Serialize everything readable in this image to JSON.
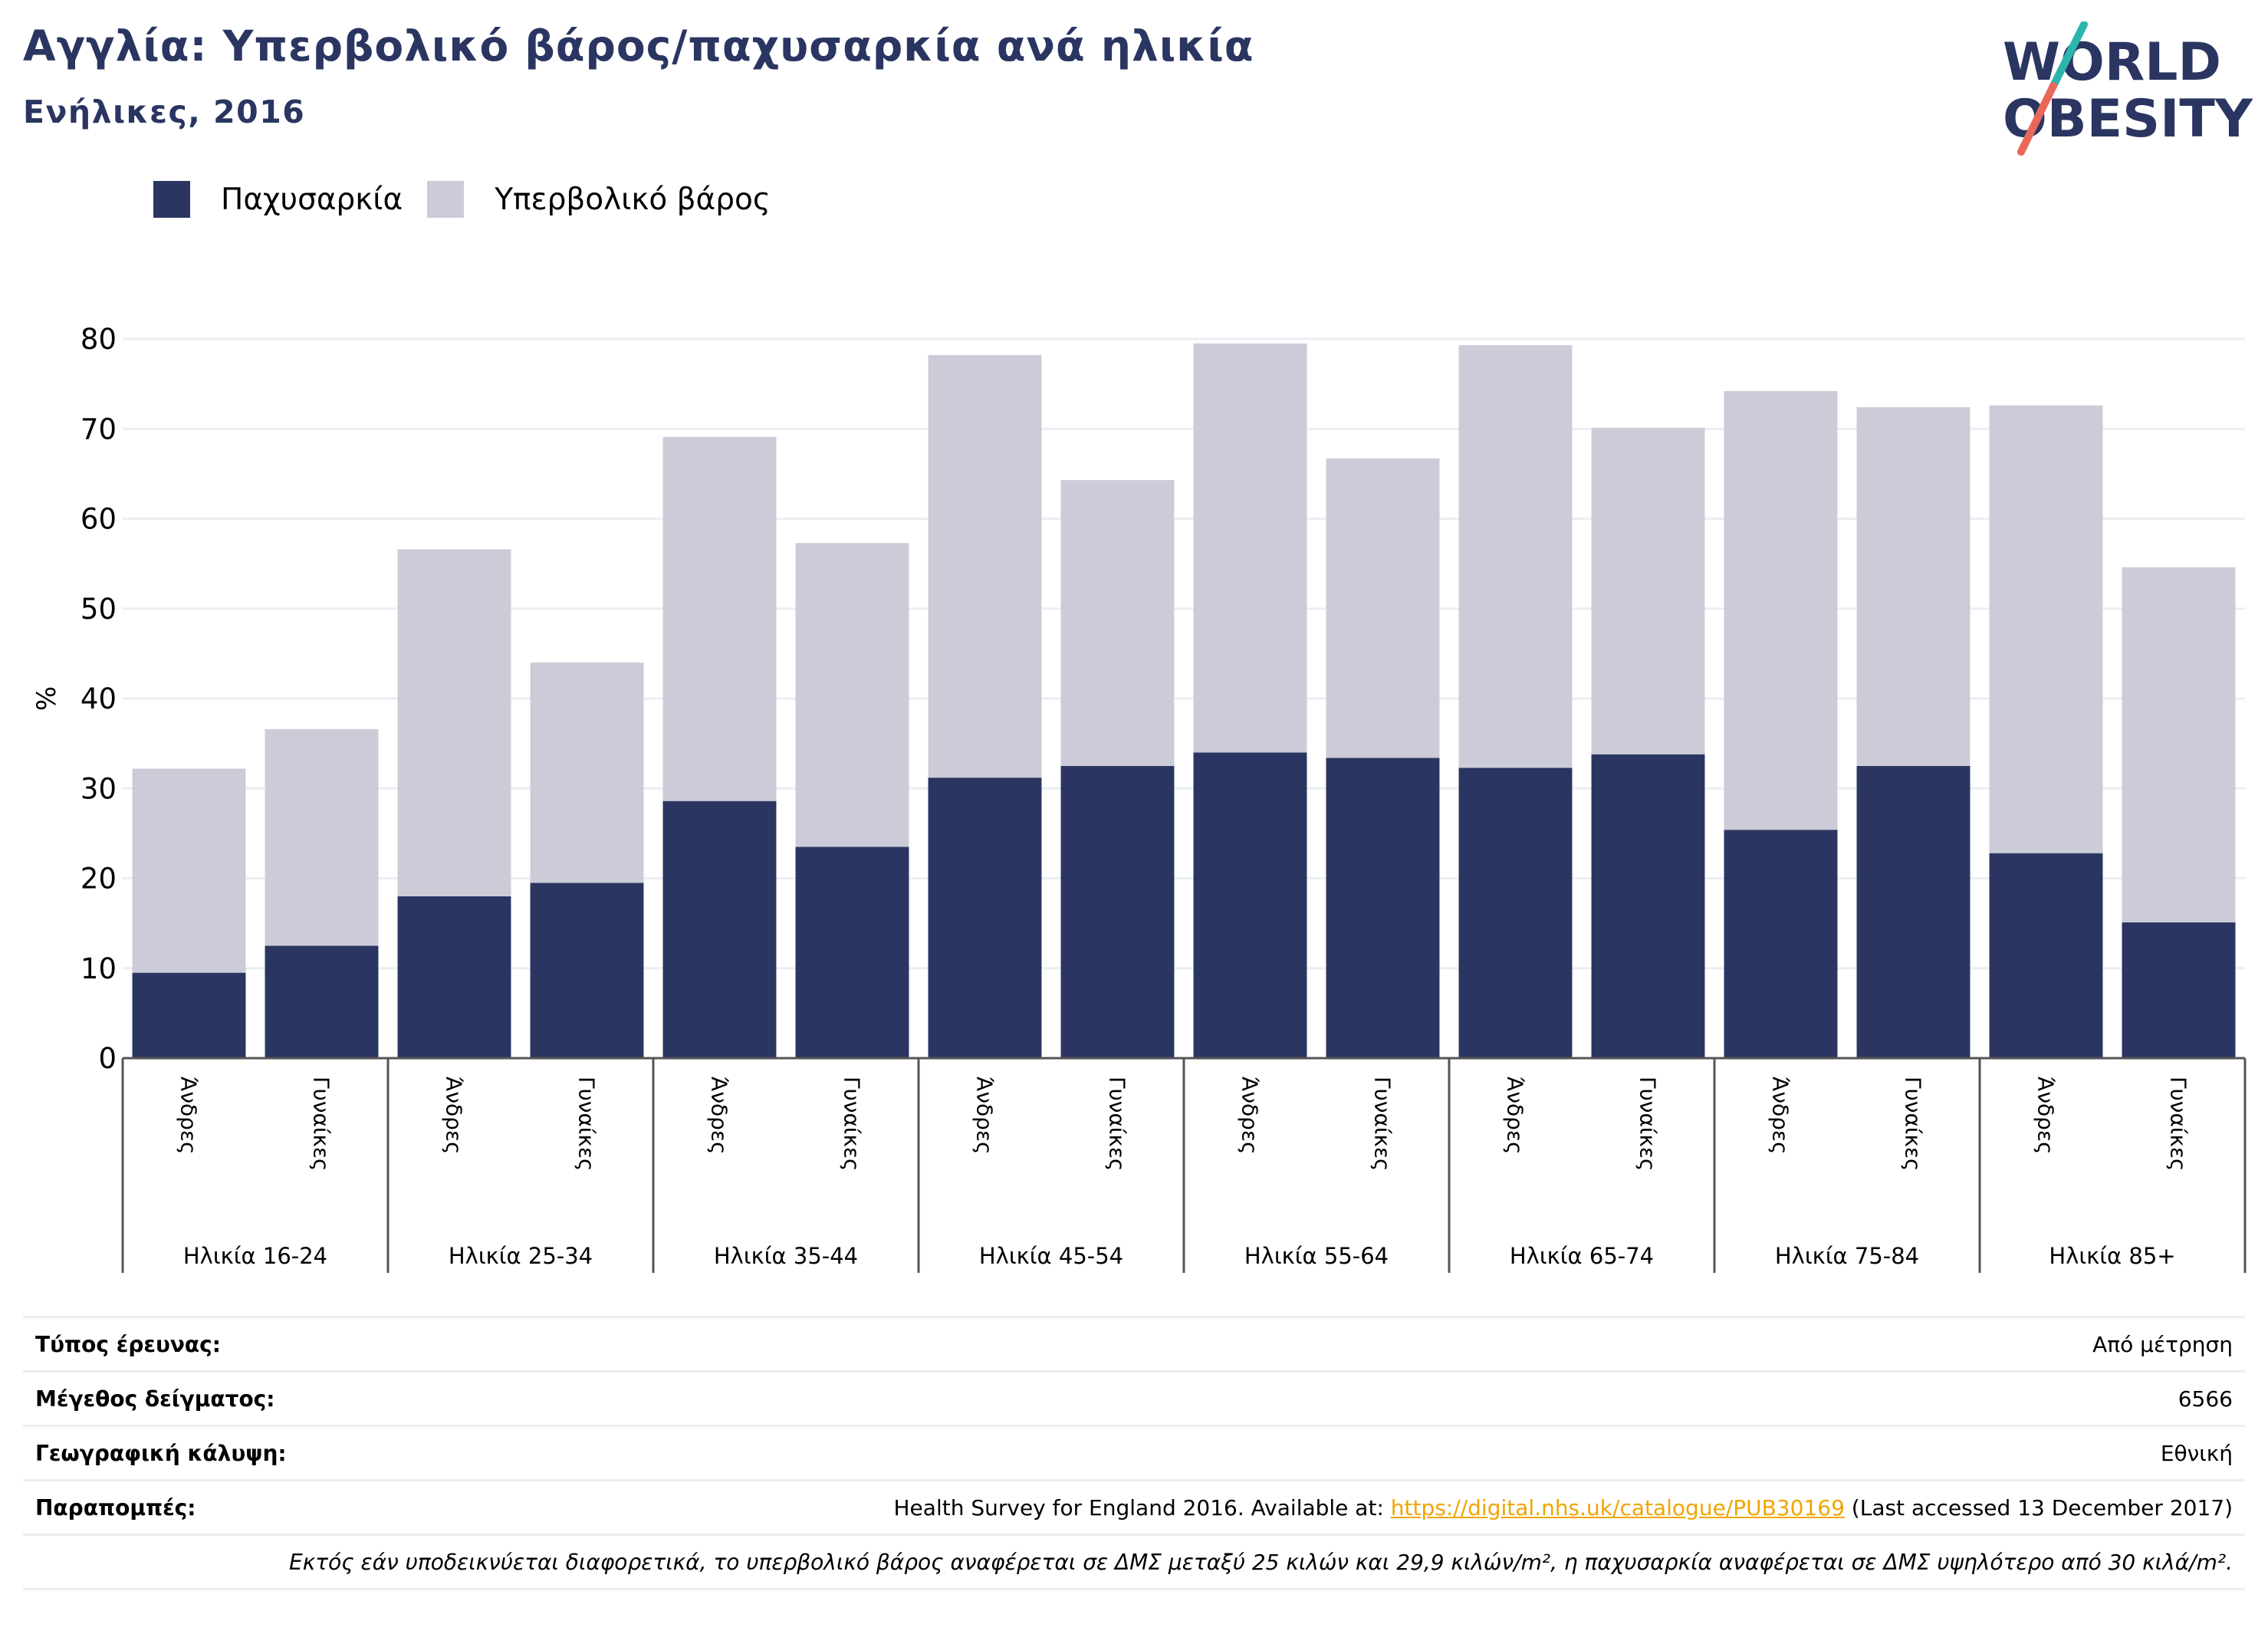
{
  "header": {
    "title": "Αγγλία: Υπερβολικό βάρος/παχυσαρκία ανά ηλικία",
    "subtitle": "Ενήλικες, 2016"
  },
  "logo": {
    "line1": "WORLD",
    "line2": "OBESITY"
  },
  "colors": {
    "obesity": "#2a3561",
    "overweight": "#cbccd8",
    "title": "#2a3561",
    "link": "#f0a500"
  },
  "chart_data": {
    "type": "bar",
    "stacked": true,
    "ylabel": "%",
    "ylim": [
      0,
      80
    ],
    "yticks": [
      0,
      10,
      20,
      30,
      40,
      50,
      60,
      70,
      80
    ],
    "grid": true,
    "legend_position": "top-left",
    "groups": [
      "Ηλικία 16-24",
      "Ηλικία 25-34",
      "Ηλικία 35-44",
      "Ηλικία 45-54",
      "Ηλικία 55-64",
      "Ηλικία 65-74",
      "Ηλικία 75-84",
      "Ηλικία 85+"
    ],
    "categories": [
      "Άνδρες",
      "Γυναίκες",
      "Άνδρες",
      "Γυναίκες",
      "Άνδρες",
      "Γυναίκες",
      "Άνδρες",
      "Γυναίκες",
      "Άνδρες",
      "Γυναίκες",
      "Άνδρες",
      "Γυναίκες",
      "Άνδρες",
      "Γυναίκες",
      "Άνδρες",
      "Γυναίκες"
    ],
    "series": [
      {
        "name": "Παχυσαρκία",
        "values": [
          9.5,
          12.5,
          18,
          19.5,
          28.6,
          23.5,
          31.2,
          32.5,
          34,
          33.4,
          32.3,
          33.8,
          25.4,
          32.5,
          22.8,
          15.1
        ]
      },
      {
        "name": "Υπερβολικό βάρος",
        "values": [
          22.7,
          24.1,
          38.6,
          24.5,
          40.5,
          33.8,
          47.0,
          31.8,
          45.5,
          33.3,
          47.0,
          36.3,
          48.8,
          39.9,
          49.8,
          39.5
        ]
      }
    ]
  },
  "info": {
    "survey_type": {
      "label": "Τύπος έρευνας:",
      "value": "Από μέτρηση"
    },
    "sample_size": {
      "label": "Μέγεθος δείγματος:",
      "value": "6566"
    },
    "coverage": {
      "label": "Γεωγραφική κάλυψη:",
      "value": "Εθνική"
    },
    "references": {
      "label": "Παραπομπές:",
      "prefix": "Health Survey for England 2016. Available at: ",
      "link": "https://digital.nhs.uk/catalogue/PUB30169",
      "suffix": " (Last accessed 13 December 2017)"
    },
    "note": "Εκτός εάν υποδεικνύεται διαφορετικά, το υπερβολικό βάρος αναφέρεται σε ΔΜΣ μεταξύ 25 κιλών και 29,9 κιλών/m², η παχυσαρκία αναφέρεται σε ΔΜΣ υψηλότερο από 30 κιλά/m²."
  }
}
